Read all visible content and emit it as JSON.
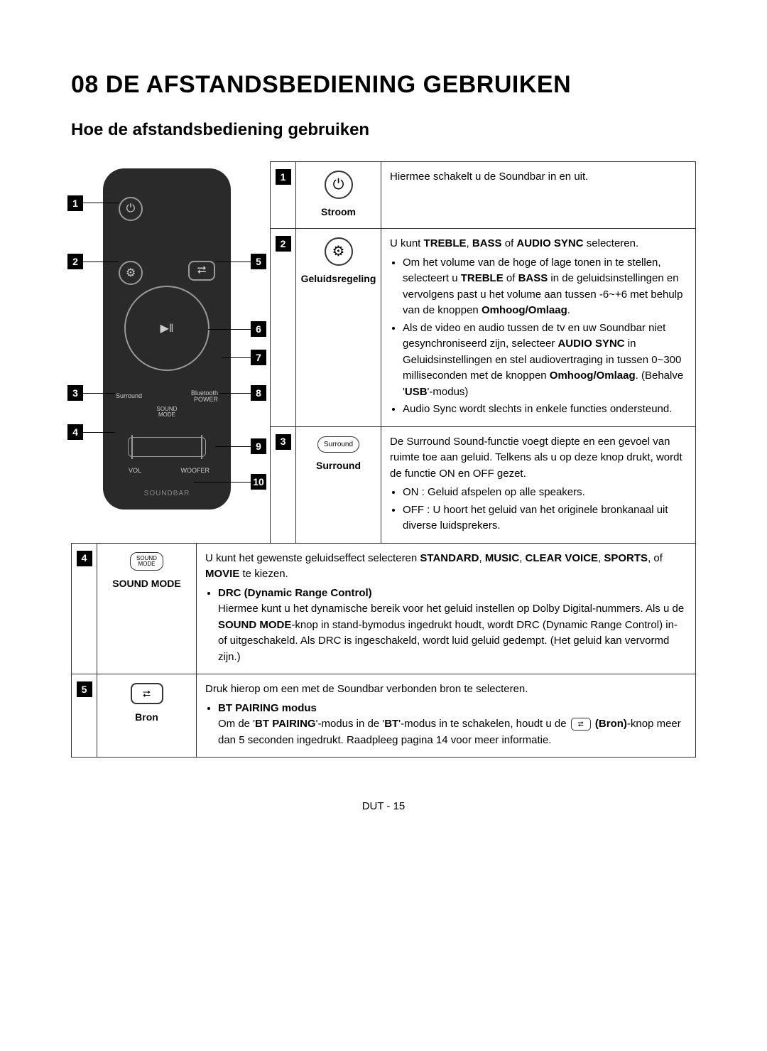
{
  "chapter_title": "08 DE AFSTANDSBEDIENING GEBRUIKEN",
  "section_title": "Hoe de afstandsbediening gebruiken",
  "remote": {
    "surround": "Surround",
    "bt_power": "Bluetooth\nPOWER",
    "sound_mode": "SOUND\nMODE",
    "vol": "VOL",
    "woofer": "WOOFER",
    "brand": "SOUNDBAR"
  },
  "callouts": [
    "1",
    "2",
    "3",
    "4",
    "5",
    "6",
    "7",
    "8",
    "9",
    "10"
  ],
  "rows_top": [
    {
      "num": "1",
      "label": "Stroom",
      "icon_type": "power",
      "desc_html": "Hiermee schakelt u de Soundbar in en uit."
    },
    {
      "num": "2",
      "label": "Geluidsregeling",
      "icon_type": "gear",
      "desc_html": "U kunt <b>TREBLE</b>, <b>BASS</b> of <b>AUDIO SYNC</b> selecteren.<ul class='desc-list'><li>Om het volume van de hoge of lage tonen in te stellen, selecteert u <b>TREBLE</b> of <b>BASS</b> in de geluidsinstellingen en vervolgens past u het volume aan tussen -6~+6 met behulp van de knoppen <b>Omhoog/Omlaag</b>.</li><li>Als de video en audio tussen de tv en uw Soundbar niet gesynchroniseerd zijn, selecteer <b>AUDIO SYNC</b> in Geluidsinstellingen en stel audiovertraging in tussen 0~300 milliseconden met de knoppen <b>Omhoog/Omlaag</b>. (Behalve '<b>USB</b>'-modus)</li><li>Audio Sync wordt slechts in enkele functies ondersteund.</li></ul>"
    },
    {
      "num": "3",
      "label": "Surround",
      "icon_type": "surround",
      "desc_html": "De Surround Sound-functie voegt diepte en een gevoel van ruimte toe aan geluid. Telkens als u op deze knop drukt, wordt de functie ON en OFF gezet.<ul class='desc-list'><li>ON : Geluid afspelen op alle speakers.</li><li>OFF : U hoort het geluid van het originele bronkanaal uit diverse luidsprekers.</li></ul>"
    }
  ],
  "rows_bottom": [
    {
      "num": "4",
      "label": "SOUND MODE",
      "icon_type": "soundmode",
      "desc_html": "U kunt het gewenste geluidseffect selecteren <b>STANDARD</b>, <b>MUSIC</b>, <b>CLEAR VOICE</b>, <b>SPORTS</b>, of <b>MOVIE</b> te kiezen.<ul class='desc-list'><li><b>DRC (Dynamic Range Control)</b><br>Hiermee kunt u het dynamische bereik voor het geluid instellen op Dolby Digital-nummers. Als u de <b>SOUND MODE</b>-knop in stand-bymodus ingedrukt houdt, wordt DRC (Dynamic Range Control) in- of uitgeschakeld. Als DRC is ingeschakeld, wordt luid geluid gedempt. (Het geluid kan vervormd zijn.)</li></ul>"
    },
    {
      "num": "5",
      "label": "Bron",
      "icon_type": "source",
      "desc_html": "Druk hierop om een met de Soundbar verbonden bron te selecteren.<ul class='desc-list'><li><b>BT PAIRING modus</b><br>Om de '<b>BT PAIRING</b>'-modus in de '<b>BT</b>'-modus in te schakelen, houdt u de <span class='inline-icon'>⮂</span> <b>(Bron)</b>-knop meer dan 5 seconden ingedrukt. Raadpleeg pagina 14 voor meer informatie.</li></ul>"
    }
  ],
  "footer": "DUT - 15"
}
